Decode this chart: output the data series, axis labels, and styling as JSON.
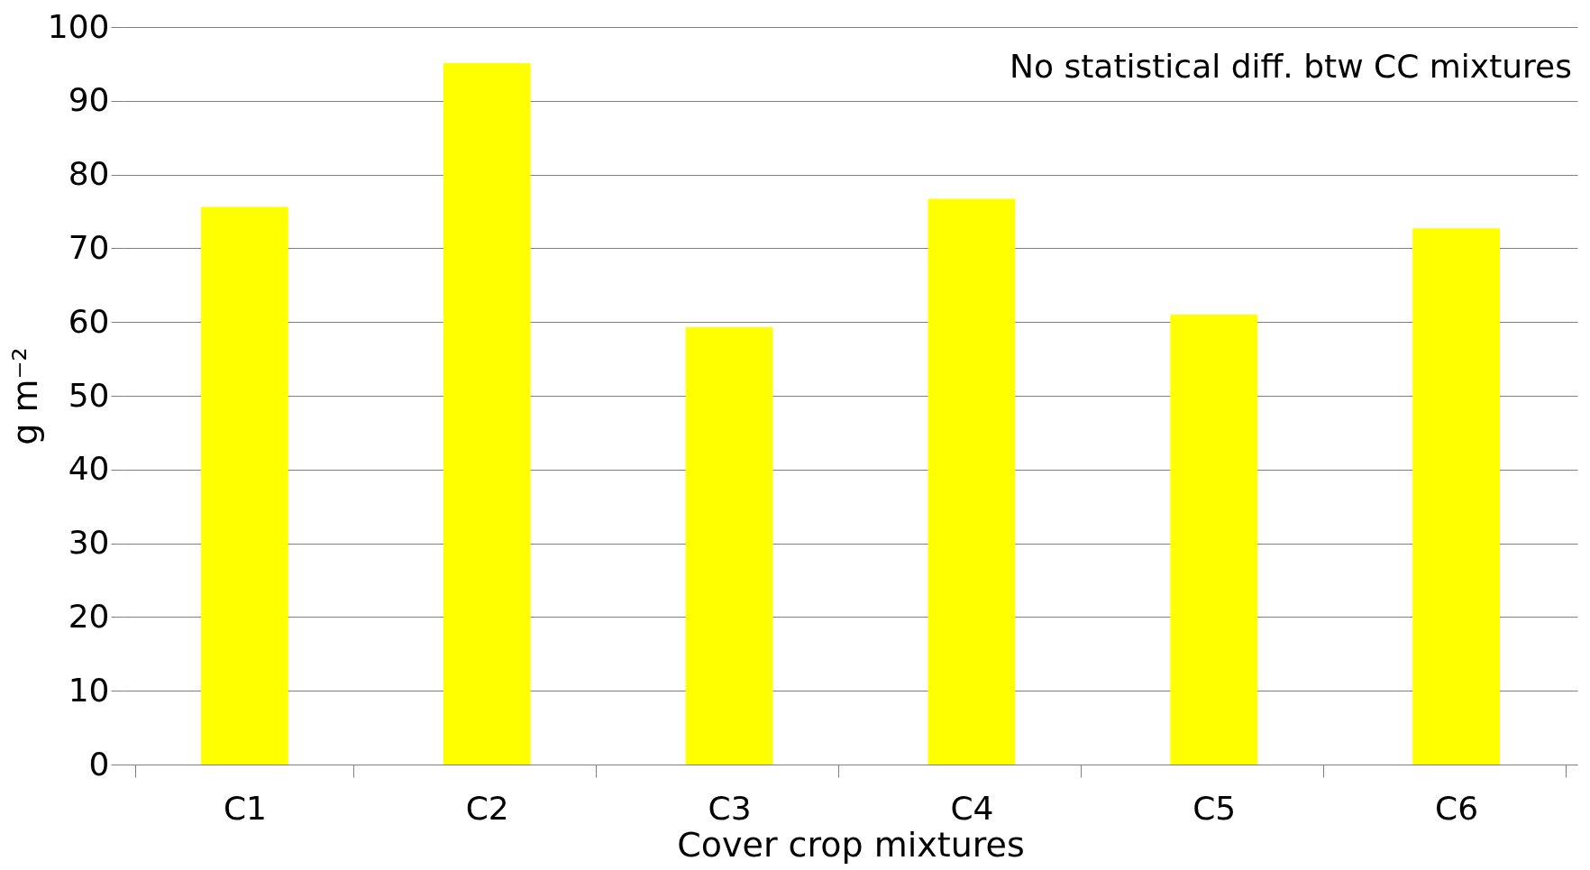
{
  "chart_data": {
    "type": "bar",
    "xlabel": "Cover crop mixtures",
    "ylabel": "g m⁻²",
    "categories": [
      "C1",
      "C2",
      "C3",
      "C4",
      "C5",
      "C6"
    ],
    "values": [
      75.6,
      95.1,
      59.3,
      76.7,
      61.0,
      72.7
    ],
    "color": "#ffff00",
    "ylim": [
      0,
      100
    ],
    "yticks": [
      0,
      10,
      20,
      30,
      40,
      50,
      60,
      70,
      80,
      90,
      100
    ],
    "grid": "y",
    "annotations": [
      "No statistical diff. btw CC mixtures"
    ]
  }
}
